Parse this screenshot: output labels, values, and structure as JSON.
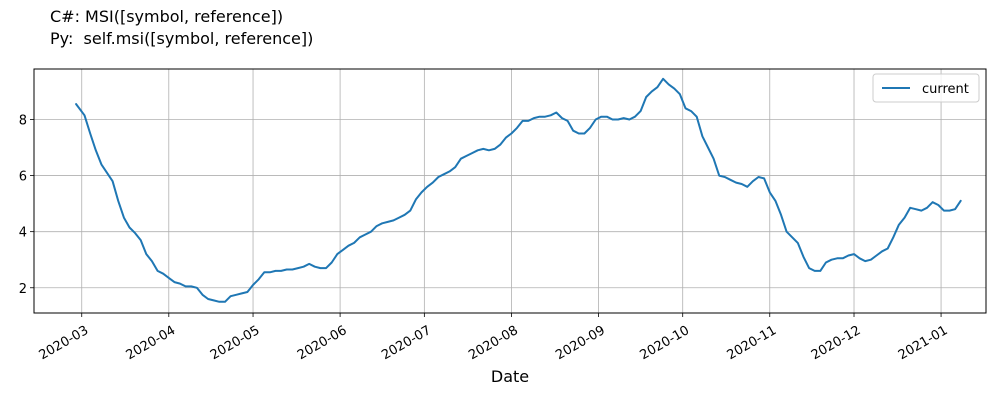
{
  "header": {
    "line1": "C#: MSI([symbol, reference])",
    "line2": "Py:  self.msi([symbol, reference])"
  },
  "chart_data": {
    "type": "line",
    "title": "",
    "xlabel": "Date",
    "ylabel": "",
    "x_tick_labels": [
      "2020-03",
      "2020-04",
      "2020-05",
      "2020-06",
      "2020-07",
      "2020-08",
      "2020-09",
      "2020-10",
      "2020-11",
      "2020-12",
      "2021-01"
    ],
    "x_tick_dates": [
      "2020-03-01",
      "2020-04-01",
      "2020-05-01",
      "2020-06-01",
      "2020-07-01",
      "2020-08-01",
      "2020-09-01",
      "2020-10-01",
      "2020-11-01",
      "2020-12-01",
      "2021-01-01"
    ],
    "xlim": [
      "2020-02-13",
      "2021-01-17"
    ],
    "y_ticks": [
      2,
      4,
      6,
      8
    ],
    "ylim": [
      1.1,
      9.8
    ],
    "grid": true,
    "legend": {
      "position": "upper right",
      "entries": [
        "current"
      ]
    },
    "colors": {
      "current": "#1f77b4"
    },
    "series": [
      {
        "name": "current",
        "points": [
          [
            "2020-02-28",
            8.55
          ],
          [
            "2020-03-02",
            8.15
          ],
          [
            "2020-03-04",
            7.5
          ],
          [
            "2020-03-06",
            6.9
          ],
          [
            "2020-03-08",
            6.4
          ],
          [
            "2020-03-10",
            6.1
          ],
          [
            "2020-03-12",
            5.8
          ],
          [
            "2020-03-14",
            5.1
          ],
          [
            "2020-03-16",
            4.5
          ],
          [
            "2020-03-18",
            4.15
          ],
          [
            "2020-03-20",
            3.95
          ],
          [
            "2020-03-22",
            3.7
          ],
          [
            "2020-03-24",
            3.2
          ],
          [
            "2020-03-26",
            2.95
          ],
          [
            "2020-03-28",
            2.6
          ],
          [
            "2020-03-30",
            2.5
          ],
          [
            "2020-04-01",
            2.35
          ],
          [
            "2020-04-03",
            2.2
          ],
          [
            "2020-04-05",
            2.15
          ],
          [
            "2020-04-07",
            2.05
          ],
          [
            "2020-04-09",
            2.05
          ],
          [
            "2020-04-11",
            2.0
          ],
          [
            "2020-04-13",
            1.75
          ],
          [
            "2020-04-15",
            1.6
          ],
          [
            "2020-04-17",
            1.55
          ],
          [
            "2020-04-19",
            1.5
          ],
          [
            "2020-04-21",
            1.5
          ],
          [
            "2020-04-23",
            1.7
          ],
          [
            "2020-04-25",
            1.75
          ],
          [
            "2020-04-27",
            1.8
          ],
          [
            "2020-04-29",
            1.85
          ],
          [
            "2020-05-01",
            2.1
          ],
          [
            "2020-05-03",
            2.3
          ],
          [
            "2020-05-05",
            2.55
          ],
          [
            "2020-05-07",
            2.55
          ],
          [
            "2020-05-09",
            2.6
          ],
          [
            "2020-05-11",
            2.6
          ],
          [
            "2020-05-13",
            2.65
          ],
          [
            "2020-05-15",
            2.65
          ],
          [
            "2020-05-17",
            2.7
          ],
          [
            "2020-05-19",
            2.75
          ],
          [
            "2020-05-21",
            2.85
          ],
          [
            "2020-05-23",
            2.75
          ],
          [
            "2020-05-25",
            2.7
          ],
          [
            "2020-05-27",
            2.7
          ],
          [
            "2020-05-29",
            2.9
          ],
          [
            "2020-05-31",
            3.2
          ],
          [
            "2020-06-02",
            3.35
          ],
          [
            "2020-06-04",
            3.5
          ],
          [
            "2020-06-06",
            3.6
          ],
          [
            "2020-06-08",
            3.8
          ],
          [
            "2020-06-10",
            3.9
          ],
          [
            "2020-06-12",
            4.0
          ],
          [
            "2020-06-14",
            4.2
          ],
          [
            "2020-06-16",
            4.3
          ],
          [
            "2020-06-18",
            4.35
          ],
          [
            "2020-06-20",
            4.4
          ],
          [
            "2020-06-22",
            4.5
          ],
          [
            "2020-06-24",
            4.6
          ],
          [
            "2020-06-26",
            4.75
          ],
          [
            "2020-06-28",
            5.15
          ],
          [
            "2020-06-30",
            5.4
          ],
          [
            "2020-07-02",
            5.6
          ],
          [
            "2020-07-04",
            5.75
          ],
          [
            "2020-07-06",
            5.95
          ],
          [
            "2020-07-08",
            6.05
          ],
          [
            "2020-07-10",
            6.15
          ],
          [
            "2020-07-12",
            6.3
          ],
          [
            "2020-07-14",
            6.6
          ],
          [
            "2020-07-16",
            6.7
          ],
          [
            "2020-07-18",
            6.8
          ],
          [
            "2020-07-20",
            6.9
          ],
          [
            "2020-07-22",
            6.95
          ],
          [
            "2020-07-24",
            6.9
          ],
          [
            "2020-07-26",
            6.95
          ],
          [
            "2020-07-28",
            7.1
          ],
          [
            "2020-07-30",
            7.35
          ],
          [
            "2020-08-01",
            7.5
          ],
          [
            "2020-08-03",
            7.7
          ],
          [
            "2020-08-05",
            7.95
          ],
          [
            "2020-08-07",
            7.95
          ],
          [
            "2020-08-09",
            8.05
          ],
          [
            "2020-08-11",
            8.1
          ],
          [
            "2020-08-13",
            8.1
          ],
          [
            "2020-08-15",
            8.15
          ],
          [
            "2020-08-17",
            8.25
          ],
          [
            "2020-08-19",
            8.05
          ],
          [
            "2020-08-21",
            7.95
          ],
          [
            "2020-08-23",
            7.6
          ],
          [
            "2020-08-25",
            7.5
          ],
          [
            "2020-08-27",
            7.5
          ],
          [
            "2020-08-29",
            7.7
          ],
          [
            "2020-08-31",
            8.0
          ],
          [
            "2020-09-02",
            8.1
          ],
          [
            "2020-09-04",
            8.1
          ],
          [
            "2020-09-06",
            8.0
          ],
          [
            "2020-09-08",
            8.0
          ],
          [
            "2020-09-10",
            8.05
          ],
          [
            "2020-09-12",
            8.0
          ],
          [
            "2020-09-14",
            8.1
          ],
          [
            "2020-09-16",
            8.3
          ],
          [
            "2020-09-18",
            8.8
          ],
          [
            "2020-09-20",
            9.0
          ],
          [
            "2020-09-22",
            9.15
          ],
          [
            "2020-09-24",
            9.45
          ],
          [
            "2020-09-26",
            9.25
          ],
          [
            "2020-09-28",
            9.1
          ],
          [
            "2020-09-30",
            8.9
          ],
          [
            "2020-10-02",
            8.4
          ],
          [
            "2020-10-04",
            8.3
          ],
          [
            "2020-10-06",
            8.1
          ],
          [
            "2020-10-08",
            7.4
          ],
          [
            "2020-10-10",
            7.0
          ],
          [
            "2020-10-12",
            6.6
          ],
          [
            "2020-10-14",
            6.0
          ],
          [
            "2020-10-16",
            5.95
          ],
          [
            "2020-10-18",
            5.85
          ],
          [
            "2020-10-20",
            5.75
          ],
          [
            "2020-10-22",
            5.7
          ],
          [
            "2020-10-24",
            5.6
          ],
          [
            "2020-10-26",
            5.8
          ],
          [
            "2020-10-28",
            5.95
          ],
          [
            "2020-10-30",
            5.9
          ],
          [
            "2020-11-01",
            5.4
          ],
          [
            "2020-11-03",
            5.1
          ],
          [
            "2020-11-05",
            4.6
          ],
          [
            "2020-11-07",
            4.0
          ],
          [
            "2020-11-09",
            3.8
          ],
          [
            "2020-11-11",
            3.6
          ],
          [
            "2020-11-13",
            3.1
          ],
          [
            "2020-11-15",
            2.7
          ],
          [
            "2020-11-17",
            2.6
          ],
          [
            "2020-11-19",
            2.6
          ],
          [
            "2020-11-21",
            2.9
          ],
          [
            "2020-11-23",
            3.0
          ],
          [
            "2020-11-25",
            3.05
          ],
          [
            "2020-11-27",
            3.05
          ],
          [
            "2020-11-29",
            3.15
          ],
          [
            "2020-12-01",
            3.2
          ],
          [
            "2020-12-03",
            3.05
          ],
          [
            "2020-12-05",
            2.95
          ],
          [
            "2020-12-07",
            3.0
          ],
          [
            "2020-12-09",
            3.15
          ],
          [
            "2020-12-11",
            3.3
          ],
          [
            "2020-12-13",
            3.4
          ],
          [
            "2020-12-15",
            3.8
          ],
          [
            "2020-12-17",
            4.25
          ],
          [
            "2020-12-19",
            4.5
          ],
          [
            "2020-12-21",
            4.85
          ],
          [
            "2020-12-23",
            4.8
          ],
          [
            "2020-12-25",
            4.75
          ],
          [
            "2020-12-27",
            4.85
          ],
          [
            "2020-12-29",
            5.05
          ],
          [
            "2020-12-31",
            4.95
          ],
          [
            "2021-01-02",
            4.75
          ],
          [
            "2021-01-04",
            4.75
          ],
          [
            "2021-01-06",
            4.8
          ],
          [
            "2021-01-08",
            5.1
          ]
        ]
      }
    ]
  }
}
